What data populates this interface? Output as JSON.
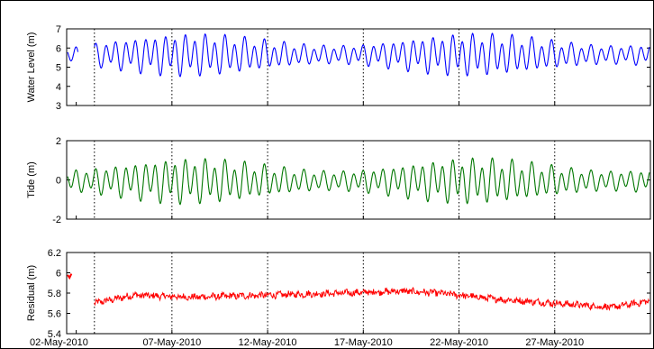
{
  "chart_data": [
    {
      "type": "line",
      "panel": "water-level",
      "ylabel": "Water Level (m)",
      "ylim": [
        3,
        7
      ],
      "yticks": [
        3,
        4,
        5,
        6,
        7
      ],
      "series_color": "#0000ff",
      "series": {
        "mean": 5.6,
        "amplitude": 0.9,
        "start_day": 0.0,
        "gap_start": 0.12,
        "gap_end": 0.95,
        "note_values": "semi-diurnal tide signal, approx 4.1-7.0 m"
      }
    },
    {
      "type": "line",
      "panel": "tide",
      "ylabel": "Tide (m)",
      "ylim": [
        -2,
        2
      ],
      "yticks": [
        -2,
        0,
        2
      ],
      "series_color": "#007700",
      "series": {
        "mean": 0.0,
        "amplitude": 1.1,
        "note_values": "semi-diurnal tidal component, approx -1.5 to 1.2 m"
      }
    },
    {
      "type": "line",
      "panel": "residual",
      "ylabel": "Residual (m)",
      "ylim": [
        5.4,
        6.2
      ],
      "yticks": [
        5.4,
        5.6,
        5.8,
        6,
        6.2
      ],
      "series_color": "#ff0000",
      "series": {
        "trend_points": [
          [
            0.95,
            5.7
          ],
          [
            3,
            5.78
          ],
          [
            6,
            5.76
          ],
          [
            10,
            5.78
          ],
          [
            14,
            5.8
          ],
          [
            17,
            5.82
          ],
          [
            19,
            5.8
          ],
          [
            22,
            5.74
          ],
          [
            25,
            5.7
          ],
          [
            28,
            5.66
          ],
          [
            29.9,
            5.72
          ]
        ],
        "noise": 0.03
      }
    }
  ],
  "x_axis": {
    "start_date": "02-May-2010",
    "tick_labels": [
      "02-May-2010",
      "07-May-2010",
      "12-May-2010",
      "17-May-2010",
      "22-May-2010",
      "27-May-2010"
    ],
    "tick_days": [
      0,
      5,
      10,
      15,
      20,
      25
    ],
    "range_days": [
      -0.5,
      30.0
    ],
    "vertical_dotted_gridlines": true
  }
}
